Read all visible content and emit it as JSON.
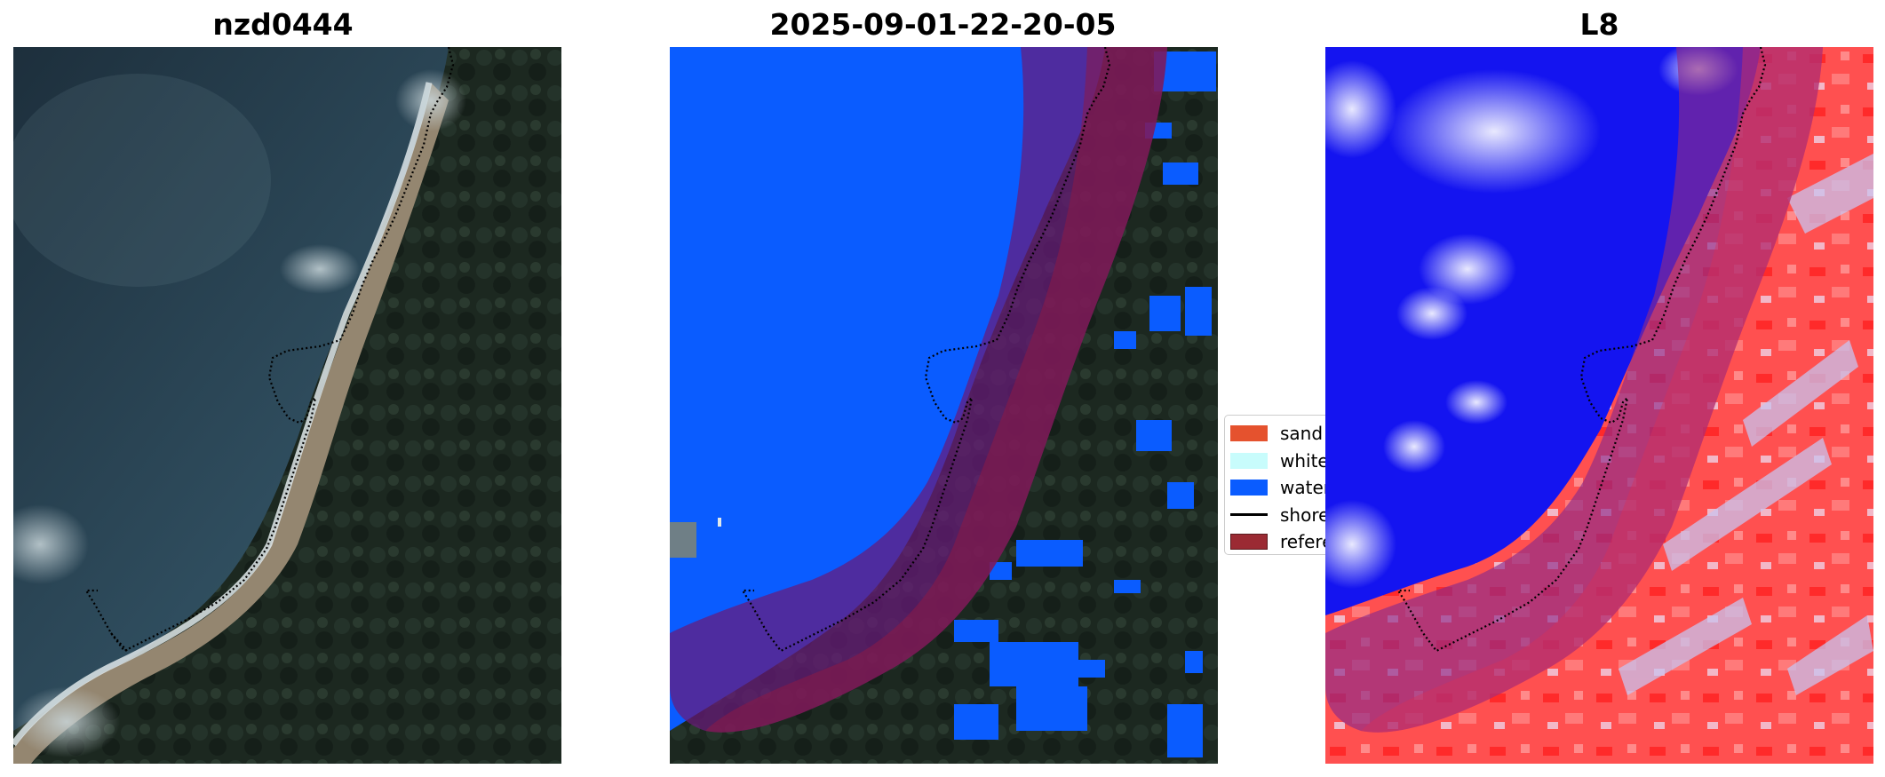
{
  "panels": [
    {
      "title": "nzd0444"
    },
    {
      "title": "2025-09-01-22-20-05"
    },
    {
      "title": "L8"
    }
  ],
  "legend": {
    "items": [
      {
        "label": "sand",
        "color": "#e5522e",
        "kind": "patch"
      },
      {
        "label": "whitewater",
        "color": "#c8fcfc",
        "kind": "patch"
      },
      {
        "label": "water",
        "color": "#0a5cff",
        "kind": "patch"
      },
      {
        "label": "shoreline",
        "color": "#000000",
        "kind": "line"
      },
      {
        "label": "reference shoreline buffer",
        "color": "#9b2a33",
        "kind": "patch"
      }
    ]
  },
  "colors": {
    "ocean": "#24394a",
    "forest": "#1b2620",
    "beach": "#9c8f77",
    "water_class": "#0a5cff",
    "buffer_on_water": "#5a2f9a",
    "buffer_on_land": "#8d2450",
    "index_positive": "#ff2020",
    "index_negative": "#1010f0"
  }
}
